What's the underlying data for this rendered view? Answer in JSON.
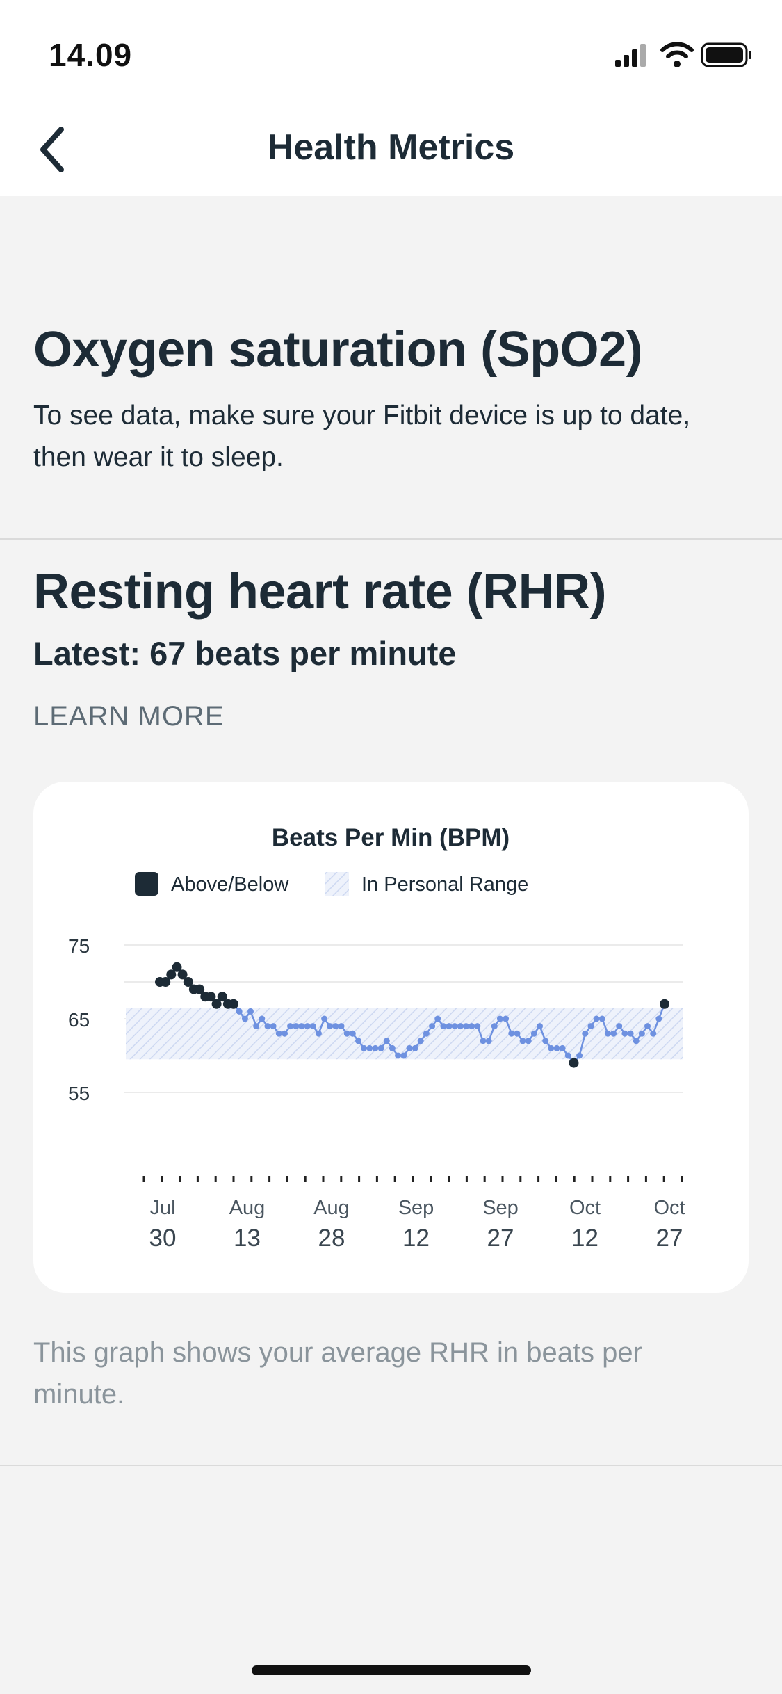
{
  "status": {
    "time": "14.09",
    "icons": [
      "signal-icon",
      "wifi-icon",
      "battery-icon"
    ]
  },
  "nav": {
    "back_icon": "chevron-left-icon",
    "title": "Health Metrics"
  },
  "spo2": {
    "title": "Oxygen saturation (SpO2)",
    "description": "To see data, make sure your Fitbit device is up to date, then wear it to sleep."
  },
  "rhr": {
    "title": "Resting heart rate (RHR)",
    "latest": "Latest: 67 beats per minute",
    "learn_more": "LEARN MORE",
    "note": "This graph shows your average RHR in beats per minute."
  },
  "colors": {
    "above_below": "#1d2b36",
    "in_range_line": "#6e91e0",
    "range_band": "#dfe6f6"
  },
  "chart_data": {
    "type": "line",
    "title": "Beats Per Min (BPM)",
    "legend": [
      {
        "label": "Above/Below",
        "style": "solid-dark"
      },
      {
        "label": "In Personal Range",
        "style": "hatched-blue"
      }
    ],
    "legend_position": "top",
    "y_ticks": [
      "75",
      "65",
      "55"
    ],
    "ylim": [
      50,
      75
    ],
    "gridlines": [
      55,
      65,
      70,
      75
    ],
    "personal_range": [
      59.5,
      66.5
    ],
    "x_labels": [
      {
        "month": "Jul",
        "day": "30"
      },
      {
        "month": "Aug",
        "day": "13"
      },
      {
        "month": "Aug",
        "day": "28"
      },
      {
        "month": "Sep",
        "day": "12"
      },
      {
        "month": "Sep",
        "day": "27"
      },
      {
        "month": "Oct",
        "day": "12"
      },
      {
        "month": "Oct",
        "day": "27"
      }
    ],
    "series": [
      {
        "values": [
          70,
          70,
          71,
          72,
          71,
          70,
          69,
          69,
          68,
          68,
          67,
          68,
          67,
          67,
          66,
          65,
          66,
          64,
          65,
          64,
          64,
          63,
          63,
          64,
          64,
          64,
          64,
          64,
          63,
          65,
          64,
          64,
          64,
          63,
          63,
          62,
          61,
          61,
          61,
          61,
          62,
          61,
          60,
          60,
          61,
          61,
          62,
          63,
          64,
          65,
          64,
          64,
          64,
          64,
          64,
          64,
          64,
          62,
          62,
          64,
          65,
          65,
          63,
          63,
          62,
          62,
          63,
          64,
          62,
          61,
          61,
          61,
          60,
          59,
          60,
          63,
          64,
          65,
          65,
          63,
          63,
          64,
          63,
          63,
          62,
          63,
          64,
          63,
          65,
          67
        ]
      }
    ]
  }
}
